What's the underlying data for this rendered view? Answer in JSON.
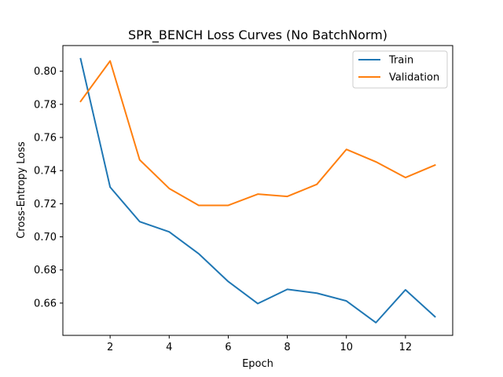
{
  "chart_data": {
    "type": "line",
    "title": "SPR_BENCH Loss Curves (No BatchNorm)",
    "xlabel": "Epoch",
    "ylabel": "Cross-Entropy Loss",
    "xlim": [
      0.4,
      13.6
    ],
    "ylim": [
      0.6405,
      0.8155
    ],
    "xticks": [
      2,
      4,
      6,
      8,
      10,
      12
    ],
    "yticks": [
      0.66,
      0.68,
      0.7,
      0.72,
      0.74,
      0.76,
      0.78,
      0.8
    ],
    "ytick_labels": [
      "0.66",
      "0.68",
      "0.70",
      "0.72",
      "0.74",
      "0.76",
      "0.78",
      "0.80"
    ],
    "xtick_labels": [
      "2",
      "4",
      "6",
      "8",
      "10",
      "12"
    ],
    "grid": false,
    "legend_position": "upper right",
    "x": [
      1,
      2,
      3,
      4,
      5,
      6,
      7,
      8,
      9,
      10,
      11,
      12,
      13
    ],
    "series": [
      {
        "name": "Train",
        "color": "#1f77b4",
        "values": [
          0.8075,
          0.73,
          0.7092,
          0.703,
          0.6898,
          0.673,
          0.6597,
          0.6683,
          0.666,
          0.6613,
          0.6482,
          0.668,
          0.6518
        ]
      },
      {
        "name": "Validation",
        "color": "#ff7f0e",
        "values": [
          0.7818,
          0.8062,
          0.7465,
          0.7292,
          0.719,
          0.719,
          0.7258,
          0.7244,
          0.7317,
          0.7528,
          0.7453,
          0.7358,
          0.7433
        ]
      }
    ]
  }
}
